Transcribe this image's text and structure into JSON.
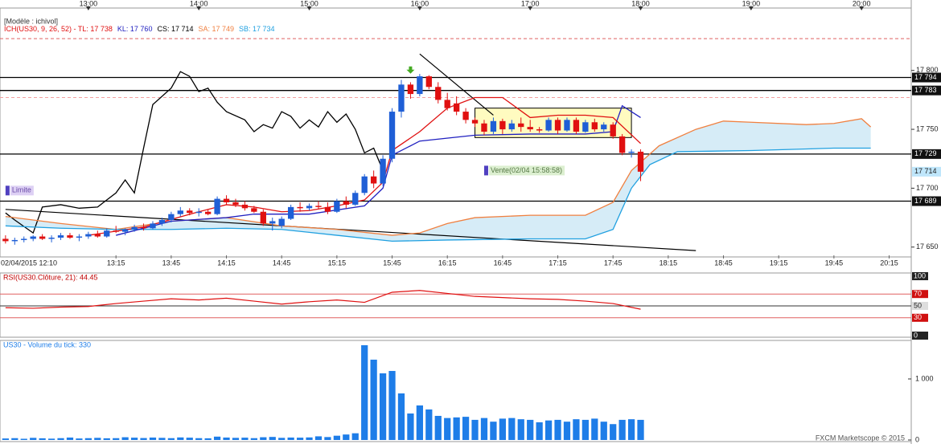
{
  "footer": "FXCM Marketscope © 2015",
  "chart_data": [
    {
      "type": "candlestick",
      "title": "[Modèle : ichivol]",
      "header": [
        {
          "text": "ICH(US30, 9, 26, 52) - TL: 17 738",
          "color": "#e01010"
        },
        {
          "text": "KL: 17 760",
          "color": "#2020c0"
        },
        {
          "text": "CS: 17 714",
          "color": "#000000"
        },
        {
          "text": "SA: 17 749",
          "color": "#f08040"
        },
        {
          "text": "SB: 17 734",
          "color": "#20a0e0"
        }
      ],
      "x": [
        "12:15",
        "12:20",
        "12:25",
        "12:30",
        "12:35",
        "12:40",
        "12:45",
        "12:50",
        "12:55",
        "13:00",
        "13:05",
        "13:10",
        "13:15",
        "13:20",
        "13:25",
        "13:30",
        "13:35",
        "13:40",
        "13:45",
        "13:50",
        "13:55",
        "14:00",
        "14:05",
        "14:10",
        "14:15",
        "14:20",
        "14:25",
        "14:30",
        "14:35",
        "14:40",
        "14:45",
        "14:50",
        "14:55",
        "15:00",
        "15:05",
        "15:10",
        "15:15",
        "15:20",
        "15:25",
        "15:30",
        "15:35",
        "15:40",
        "15:45",
        "15:50",
        "15:55",
        "16:00",
        "16:05",
        "16:10",
        "16:15",
        "16:20",
        "16:25",
        "16:30",
        "16:35",
        "16:40",
        "16:45",
        "16:50",
        "16:55",
        "17:00",
        "17:05",
        "17:10",
        "17:15",
        "17:20",
        "17:25",
        "17:30",
        "17:35",
        "17:40",
        "17:45",
        "17:50",
        "17:55",
        "18:00"
      ],
      "candles": [
        [
          17657,
          17660,
          17653,
          17655
        ],
        [
          17655,
          17658,
          17652,
          17656
        ],
        [
          17656,
          17659,
          17654,
          17657
        ],
        [
          17657,
          17660,
          17655,
          17659
        ],
        [
          17659,
          17661,
          17656,
          17657
        ],
        [
          17657,
          17660,
          17654,
          17658
        ],
        [
          17658,
          17662,
          17656,
          17660
        ],
        [
          17660,
          17662,
          17657,
          17658
        ],
        [
          17658,
          17661,
          17655,
          17659
        ],
        [
          17659,
          17663,
          17657,
          17661
        ],
        [
          17661,
          17664,
          17658,
          17659
        ],
        [
          17659,
          17666,
          17658,
          17664
        ],
        [
          17664,
          17668,
          17662,
          17663
        ],
        [
          17663,
          17666,
          17660,
          17665
        ],
        [
          17665,
          17669,
          17663,
          17667
        ],
        [
          17667,
          17670,
          17664,
          17666
        ],
        [
          17666,
          17672,
          17665,
          17670
        ],
        [
          17670,
          17675,
          17668,
          17673
        ],
        [
          17673,
          17680,
          17671,
          17678
        ],
        [
          17678,
          17684,
          17676,
          17681
        ],
        [
          17681,
          17683,
          17677,
          17679
        ],
        [
          17679,
          17683,
          17676,
          17680
        ],
        [
          17680,
          17682,
          17677,
          17678
        ],
        [
          17678,
          17693,
          17677,
          17691
        ],
        [
          17691,
          17694,
          17686,
          17688
        ],
        [
          17688,
          17691,
          17684,
          17686
        ],
        [
          17686,
          17689,
          17681,
          17683
        ],
        [
          17683,
          17685,
          17679,
          17680
        ],
        [
          17680,
          17682,
          17668,
          17670
        ],
        [
          17670,
          17675,
          17664,
          17672
        ],
        [
          17668,
          17676,
          17666,
          17674
        ],
        [
          17674,
          17686,
          17673,
          17684
        ],
        [
          17684,
          17688,
          17680,
          17683
        ],
        [
          17683,
          17687,
          17681,
          17685
        ],
        [
          17685,
          17689,
          17682,
          17684
        ],
        [
          17684,
          17688,
          17678,
          17680
        ],
        [
          17680,
          17691,
          17679,
          17689
        ],
        [
          17689,
          17693,
          17683,
          17686
        ],
        [
          17686,
          17698,
          17685,
          17696
        ],
        [
          17696,
          17712,
          17694,
          17710
        ],
        [
          17710,
          17715,
          17700,
          17704
        ],
        [
          17704,
          17728,
          17702,
          17725
        ],
        [
          17725,
          17768,
          17722,
          17765
        ],
        [
          17765,
          17792,
          17760,
          17788
        ],
        [
          17788,
          17790,
          17776,
          17780
        ],
        [
          17780,
          17797,
          17778,
          17795
        ],
        [
          17795,
          17796,
          17784,
          17786
        ],
        [
          17786,
          17790,
          17772,
          17775
        ],
        [
          17775,
          17781,
          17766,
          17768
        ],
        [
          17772,
          17778,
          17762,
          17765
        ],
        [
          17765,
          17768,
          17755,
          17758
        ],
        [
          17758,
          17760,
          17752,
          17755
        ],
        [
          17755,
          17758,
          17745,
          17748
        ],
        [
          17748,
          17760,
          17746,
          17757
        ],
        [
          17757,
          17759,
          17746,
          17750
        ],
        [
          17750,
          17758,
          17748,
          17755
        ],
        [
          17755,
          17760,
          17748,
          17752
        ],
        [
          17752,
          17758,
          17748,
          17750
        ],
        [
          17750,
          17752,
          17747,
          17749
        ],
        [
          17749,
          17760,
          17748,
          17758
        ],
        [
          17758,
          17760,
          17746,
          17749
        ],
        [
          17749,
          17760,
          17748,
          17758
        ],
        [
          17758,
          17760,
          17746,
          17748
        ],
        [
          17748,
          17758,
          17747,
          17756
        ],
        [
          17756,
          17759,
          17748,
          17750
        ],
        [
          17750,
          17756,
          17748,
          17754
        ],
        [
          17754,
          17756,
          17742,
          17744
        ],
        [
          17744,
          17746,
          17728,
          17730
        ],
        [
          17730,
          17733,
          17726,
          17731
        ],
        [
          17731,
          17733,
          17706,
          17714
        ]
      ],
      "up_color": "#1f5fd6",
      "down_color": "#e01010",
      "xlim": [
        "12:12",
        "20:27"
      ],
      "xticks": [
        "13:00",
        "14:00",
        "15:00",
        "16:00",
        "17:00",
        "18:00",
        "19:00",
        "20:00"
      ],
      "xticks_bottom": [
        "02/04/2015 12:10",
        "13:15",
        "13:45",
        "14:15",
        "14:45",
        "15:15",
        "15:45",
        "16:15",
        "16:45",
        "17:15",
        "17:45",
        "18:15",
        "18:45",
        "19:15",
        "19:45",
        "20:15"
      ],
      "ylim": [
        17643,
        17853
      ],
      "yticks": [
        {
          "value": 17800,
          "label": "17 800"
        },
        {
          "value": 17750,
          "label": "17 750"
        },
        {
          "value": 17700,
          "label": "17 700"
        },
        {
          "value": 17650,
          "label": "17 650"
        }
      ],
      "series": [
        {
          "color": "#000000",
          "x": [
            "12:15",
            "12:20",
            "12:30",
            "12:35",
            "12:45",
            "12:55",
            "13:05",
            "13:15",
            "13:20",
            "13:25",
            "13:30",
            "13:35",
            "13:45",
            "13:50",
            "13:55",
            "14:00",
            "14:05",
            "14:10",
            "14:15",
            "14:25",
            "14:30",
            "14:35",
            "14:40",
            "14:45",
            "14:50",
            "14:55",
            "15:00",
            "15:05",
            "15:10",
            "15:15",
            "15:20",
            "15:25",
            "15:30",
            "15:35",
            "15:40"
          ],
          "values": [
            17679,
            17673,
            17662,
            17684,
            17686,
            17683,
            17684,
            17696,
            17707,
            17696,
            17734,
            17771,
            17785,
            17799,
            17795,
            17782,
            17785,
            17773,
            17765,
            17758,
            17748,
            17754,
            17751,
            17765,
            17761,
            17751,
            17758,
            17752,
            17765,
            17756,
            17763,
            17750,
            17730,
            17734,
            17715
          ]
        },
        {
          "color": "#f08040",
          "x": [
            "12:15",
            "12:45",
            "13:15",
            "13:45",
            "14:15",
            "14:45",
            "15:15",
            "15:45",
            "16:00",
            "16:15",
            "16:30",
            "17:00",
            "17:30",
            "17:45",
            "17:55",
            "18:10",
            "18:30",
            "18:45",
            "19:00",
            "19:30",
            "19:45",
            "20:00",
            "20:05"
          ],
          "values": [
            17676,
            17670,
            17665,
            17672,
            17675,
            17668,
            17665,
            17660,
            17662,
            17670,
            17675,
            17677,
            17677,
            17688,
            17715,
            17736,
            17750,
            17757,
            17756,
            17754,
            17755,
            17759,
            17752
          ]
        },
        {
          "color": "#20a0e0",
          "x": [
            "12:15",
            "12:45",
            "13:15",
            "13:45",
            "14:15",
            "14:45",
            "15:15",
            "15:45",
            "16:15",
            "17:00",
            "17:30",
            "17:45",
            "17:55",
            "18:05",
            "18:20",
            "19:00",
            "19:45",
            "20:05"
          ],
          "values": [
            17668,
            17666,
            17665,
            17665,
            17666,
            17665,
            17660,
            17655,
            17656,
            17657,
            17657,
            17665,
            17700,
            17720,
            17731,
            17732,
            17734,
            17734
          ]
        },
        {
          "color": "#2020c0",
          "x": [
            "13:15",
            "13:45",
            "14:15",
            "14:30",
            "15:00",
            "15:30",
            "15:40",
            "15:45",
            "16:00",
            "16:30",
            "17:00",
            "17:30",
            "17:45",
            "17:50",
            "18:00"
          ],
          "values": [
            17660,
            17672,
            17675,
            17678,
            17678,
            17685,
            17700,
            17728,
            17740,
            17745,
            17746,
            17746,
            17748,
            17770,
            17760
          ]
        },
        {
          "color": "#e01010",
          "x": [
            "13:00",
            "13:30",
            "14:00",
            "14:15",
            "14:30",
            "14:45",
            "15:00",
            "15:15",
            "15:30",
            "15:40",
            "15:45",
            "16:00",
            "16:15",
            "16:30",
            "16:45",
            "17:00",
            "17:15",
            "17:30",
            "17:45",
            "18:00"
          ],
          "values": [
            17660,
            17667,
            17680,
            17686,
            17684,
            17680,
            17681,
            17685,
            17690,
            17705,
            17732,
            17748,
            17768,
            17777,
            17777,
            17760,
            17762,
            17762,
            17760,
            17738
          ]
        }
      ],
      "cloud_color": "#cfe9f6",
      "levels": [
        {
          "value": 17794,
          "label": "17 794"
        },
        {
          "value": 17783,
          "label": "17 783"
        },
        {
          "value": 17729,
          "label": "17 729"
        },
        {
          "value": 17689,
          "label": "17 689"
        }
      ],
      "price_marker": {
        "value": 17714,
        "label": "17 714",
        "color": "#bfe6fb"
      },
      "dashed_levels": [
        17827,
        17777
      ],
      "trendlines": [
        {
          "x": [
            "12:15",
            "18:30"
          ],
          "values": [
            17682,
            17647
          ]
        },
        {
          "x": [
            "16:00",
            "16:40"
          ],
          "values": [
            17814,
            17762
          ]
        }
      ],
      "box": {
        "x": [
          "16:30",
          "17:55"
        ],
        "values": [
          17743,
          17768
        ],
        "color": "#fffbc0"
      },
      "orders": [
        {
          "label": "Limite",
          "time": "12:15",
          "price": 17698,
          "color": "#ddd0f4"
        },
        {
          "label": "Vente(02/04 15:58:58)",
          "time": "16:35",
          "price": 17715,
          "color": "#dcefd0"
        }
      ],
      "signal": {
        "time": "15:55",
        "price": 17800,
        "color": "#44aa22"
      }
    },
    {
      "type": "line",
      "title": "RSI(US30.Clôture, 21): 44.45",
      "x": [
        "12:15",
        "12:30",
        "12:45",
        "13:00",
        "13:15",
        "13:30",
        "13:45",
        "14:00",
        "14:15",
        "14:30",
        "14:45",
        "15:00",
        "15:15",
        "15:30",
        "15:45",
        "16:00",
        "16:15",
        "16:30",
        "16:45",
        "17:00",
        "17:15",
        "17:30",
        "17:45",
        "18:00"
      ],
      "values": [
        47,
        46,
        48,
        49,
        54,
        58,
        62,
        60,
        63,
        58,
        53,
        57,
        60,
        56,
        73,
        76,
        71,
        66,
        64,
        62,
        61,
        58,
        54,
        44.45
      ],
      "color": "#e01010",
      "ylim": [
        0,
        100
      ],
      "yticks": [
        100,
        70,
        50,
        30,
        0
      ],
      "levels": [
        70,
        50,
        30
      ]
    },
    {
      "type": "bar",
      "title": "US30 - Volume du tick: 330",
      "values": [
        25,
        30,
        20,
        35,
        28,
        22,
        30,
        40,
        25,
        30,
        35,
        28,
        30,
        45,
        38,
        32,
        40,
        35,
        30,
        42,
        38,
        30,
        28,
        55,
        40,
        35,
        38,
        30,
        45,
        50,
        35,
        40,
        38,
        42,
        60,
        48,
        70,
        90,
        110,
        1553,
        1316,
        1092,
        1131,
        763,
        434,
        566,
        500,
        395,
        360,
        370,
        380,
        330,
        360,
        300,
        350,
        360,
        340,
        330,
        290,
        320,
        330,
        300,
        340,
        330,
        350,
        300,
        260,
        330,
        340,
        330
      ],
      "color": "#1e7de8",
      "ylim": [
        0,
        1618
      ],
      "yticks": [
        {
          "value": 1000,
          "label": "1 000"
        },
        0
      ]
    }
  ]
}
